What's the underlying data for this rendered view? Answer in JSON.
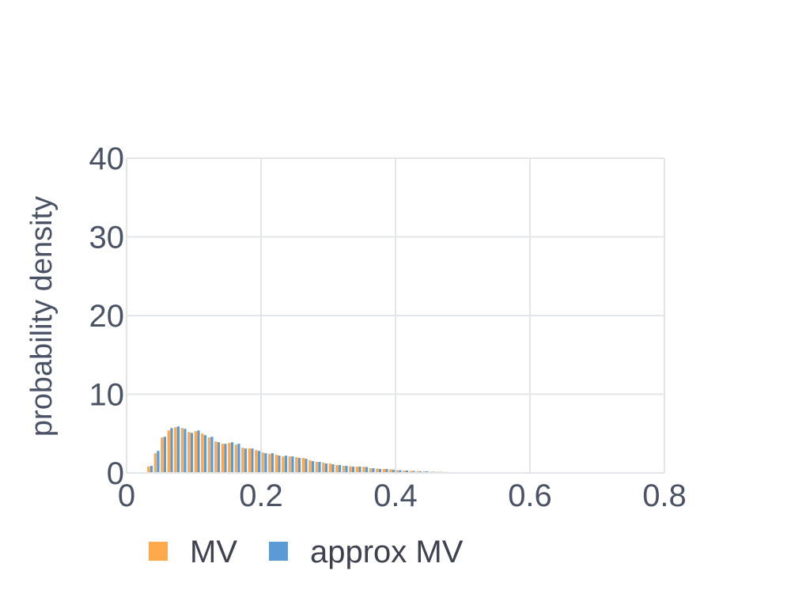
{
  "chart_data": {
    "type": "bar",
    "title": "",
    "xlabel": "",
    "ylabel": "probability density",
    "xlim": [
      0,
      0.8
    ],
    "ylim": [
      0,
      40
    ],
    "x_ticks": [
      "0",
      "0.2",
      "0.4",
      "0.6",
      "0.8"
    ],
    "y_ticks": [
      "0",
      "10",
      "20",
      "30",
      "40"
    ],
    "grid": true,
    "legend_position": "bottom-left, horizontal",
    "bin_centers": [
      0.025,
      0.035,
      0.045,
      0.055,
      0.065,
      0.075,
      0.085,
      0.095,
      0.105,
      0.115,
      0.125,
      0.135,
      0.145,
      0.155,
      0.165,
      0.175,
      0.185,
      0.195,
      0.205,
      0.215,
      0.225,
      0.235,
      0.245,
      0.255,
      0.265,
      0.275,
      0.285,
      0.295,
      0.305,
      0.315,
      0.325,
      0.335,
      0.345,
      0.355,
      0.365,
      0.375,
      0.385,
      0.395,
      0.405,
      0.415,
      0.425,
      0.435,
      0.445,
      0.455,
      0.465,
      0.475,
      0.485,
      0.495,
      0.505,
      0.515,
      0.525,
      0.535,
      0.545,
      0.555,
      0.565,
      0.575,
      0.585,
      0.595,
      0.605,
      0.615,
      0.625,
      0.635,
      0.645
    ],
    "series": [
      {
        "name": "MV",
        "color": "#FFA94D",
        "values": [
          0.05,
          0.8,
          2.5,
          4.5,
          5.4,
          5.8,
          5.7,
          5.2,
          5.3,
          5.0,
          4.5,
          4.0,
          3.7,
          3.8,
          3.6,
          3.2,
          3.1,
          2.9,
          2.6,
          2.4,
          2.3,
          2.1,
          2.1,
          2.0,
          1.9,
          1.6,
          1.4,
          1.3,
          1.2,
          1.0,
          0.9,
          0.85,
          0.8,
          0.8,
          0.6,
          0.55,
          0.5,
          0.45,
          0.35,
          0.3,
          0.25,
          0.22,
          0.2,
          0.15,
          0.14,
          0.12,
          0.1,
          0.08,
          0.06,
          0.05,
          0.04,
          0.03,
          0.03,
          0.02,
          0.02,
          0.02,
          0.02,
          0.01,
          0.01,
          0.01,
          0.01,
          0.01,
          0.01
        ]
      },
      {
        "name": "approx MV",
        "color": "#5B9BD5",
        "values": [
          0.1,
          0.9,
          2.8,
          4.6,
          5.7,
          5.9,
          5.6,
          5.1,
          5.4,
          4.8,
          4.6,
          3.9,
          3.7,
          3.9,
          3.7,
          3.1,
          3.1,
          2.8,
          2.5,
          2.5,
          2.2,
          2.2,
          2.1,
          1.9,
          1.8,
          1.5,
          1.4,
          1.2,
          1.1,
          1.0,
          0.9,
          0.8,
          0.8,
          0.75,
          0.6,
          0.5,
          0.5,
          0.4,
          0.35,
          0.3,
          0.25,
          0.2,
          0.2,
          0.15,
          0.13,
          0.12,
          0.1,
          0.07,
          0.06,
          0.05,
          0.04,
          0.03,
          0.03,
          0.02,
          0.02,
          0.02,
          0.02,
          0.01,
          0.01,
          0.01,
          0.01,
          0.01,
          0.01
        ]
      }
    ]
  }
}
